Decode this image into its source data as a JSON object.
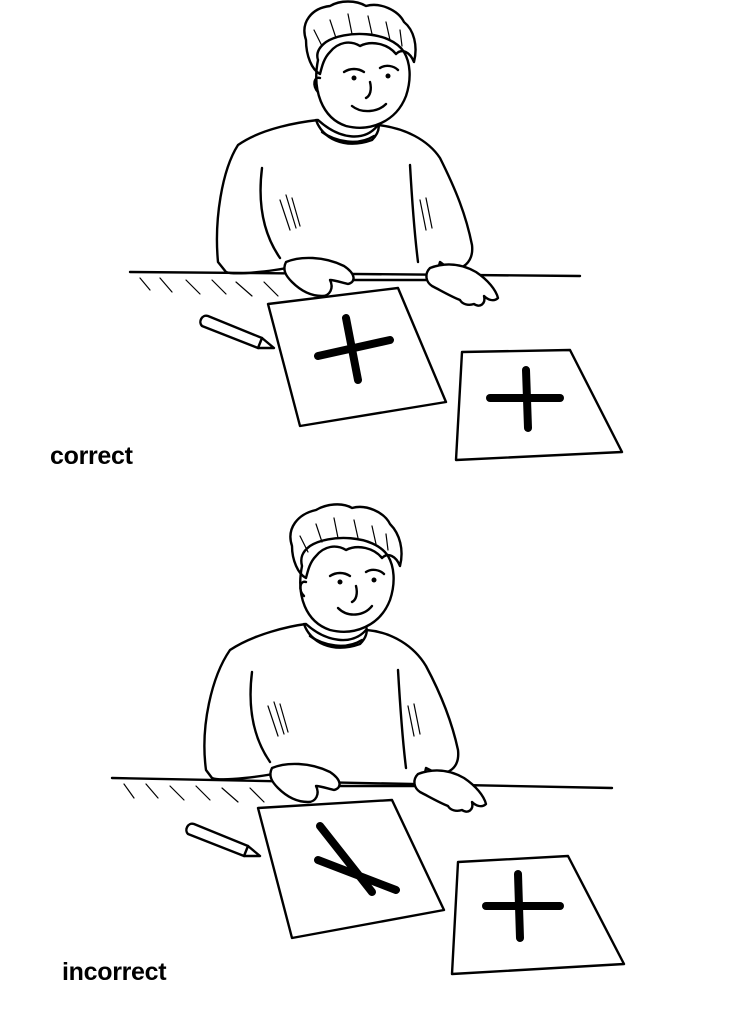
{
  "panels": {
    "correct": {
      "caption": "correct",
      "student_drawing": "plus-sign",
      "model_drawing": "plus-sign"
    },
    "incorrect": {
      "caption": "incorrect",
      "student_drawing": "rotated-cross",
      "model_drawing": "plus-sign"
    }
  },
  "colors": {
    "ink": "#000000",
    "background": "#ffffff"
  }
}
